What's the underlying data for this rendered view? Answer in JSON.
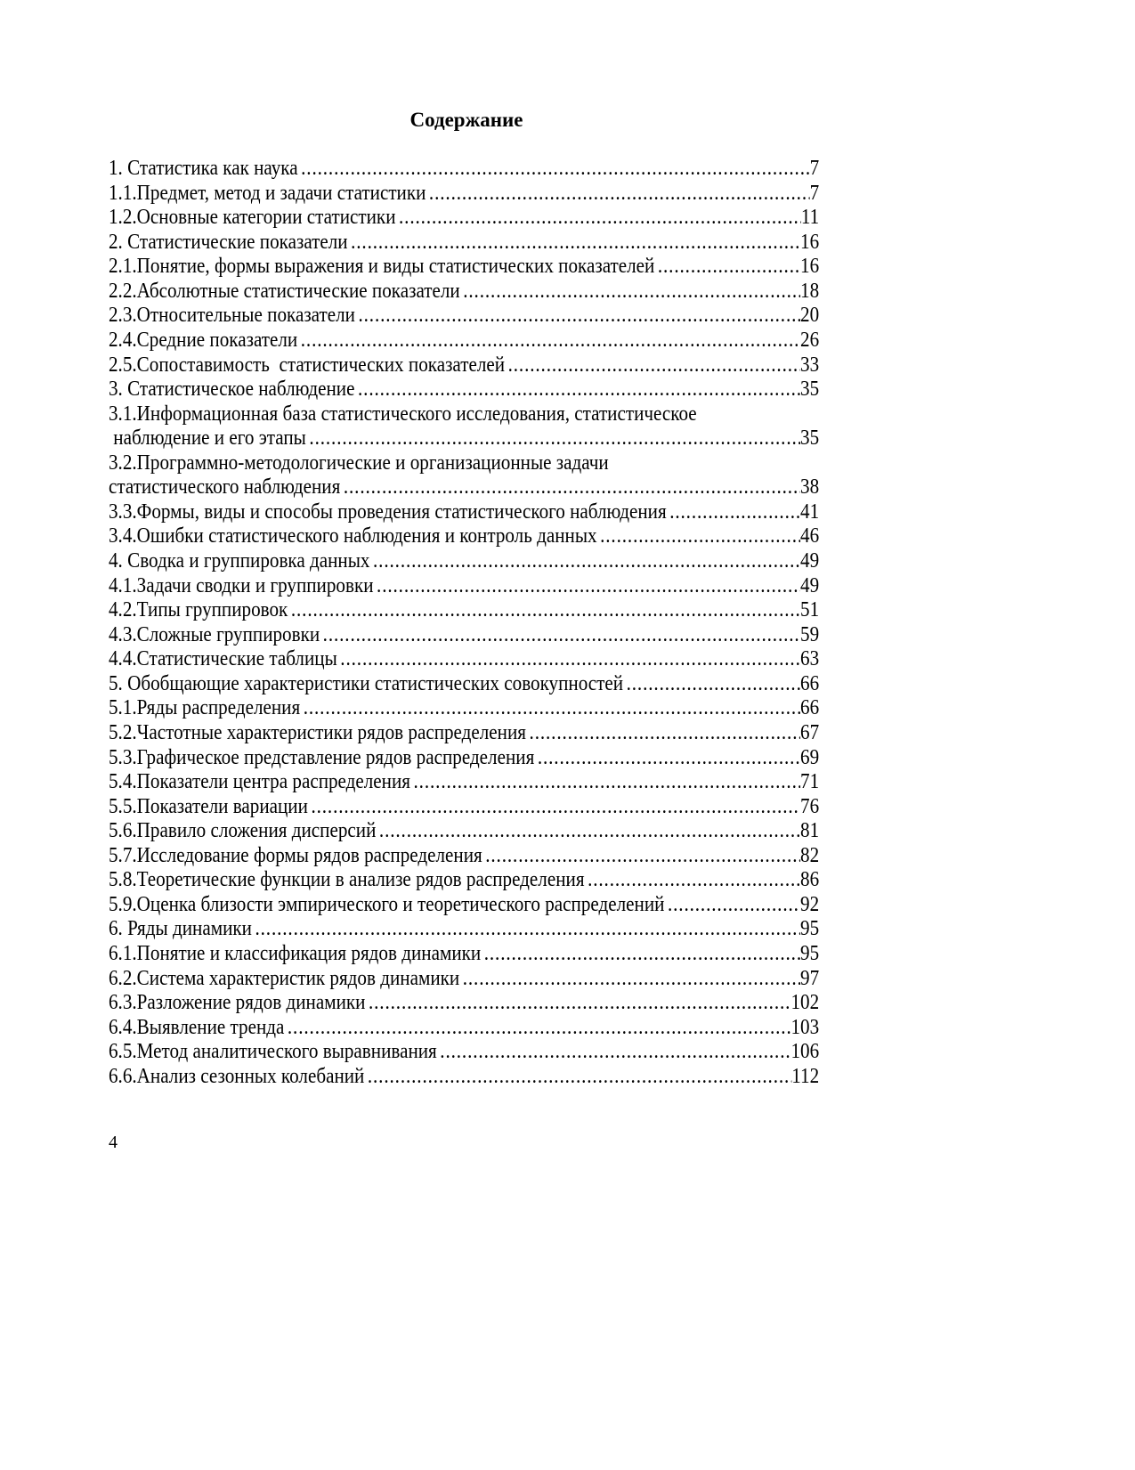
{
  "title": "Содержание",
  "entries": [
    {
      "lines": [
        "1. Статистика как наука"
      ],
      "page": "7"
    },
    {
      "lines": [
        "1.1.Предмет, метод и задачи статистики"
      ],
      "page": "7"
    },
    {
      "lines": [
        "1.2.Основные категории статистики"
      ],
      "page": "11"
    },
    {
      "lines": [
        "2. Статистические показатели"
      ],
      "page": "16"
    },
    {
      "lines": [
        "2.1.Понятие, формы выражения и виды статистических показателей"
      ],
      "page": "16"
    },
    {
      "lines": [
        "2.2.Абсолютные статистические показатели"
      ],
      "page": "18"
    },
    {
      "lines": [
        "2.3.Относительные показатели"
      ],
      "page": "20"
    },
    {
      "lines": [
        "2.4.Средние показатели"
      ],
      "page": "26"
    },
    {
      "lines": [
        "2.5.Сопоставимость  статистических показателей"
      ],
      "page": "33"
    },
    {
      "lines": [
        "3. Статистическое наблюдение"
      ],
      "page": "35"
    },
    {
      "lines": [
        "3.1.Информационная база статистического исследования, статистическое",
        " наблюдение и его этапы"
      ],
      "page": "35"
    },
    {
      "lines": [
        "3.2.Программно-методологические и организационные задачи",
        "статистического наблюдения"
      ],
      "page": "38"
    },
    {
      "lines": [
        "3.3.Формы, виды и способы проведения статистического наблюдения"
      ],
      "page": "41"
    },
    {
      "lines": [
        "3.4.Ошибки статистического наблюдения и контроль данных"
      ],
      "page": "46"
    },
    {
      "lines": [
        "4. Сводка и группировка данных"
      ],
      "page": "49"
    },
    {
      "lines": [
        "4.1.Задачи сводки и группировки"
      ],
      "page": "49"
    },
    {
      "lines": [
        "4.2.Типы группировок"
      ],
      "page": "51"
    },
    {
      "lines": [
        "4.3.Сложные группировки"
      ],
      "page": "59"
    },
    {
      "lines": [
        "4.4.Статистические таблицы"
      ],
      "page": "63"
    },
    {
      "lines": [
        "5. Обобщающие характеристики статистических совокупностей"
      ],
      "page": "66"
    },
    {
      "lines": [
        "5.1.Ряды распределения"
      ],
      "page": "66"
    },
    {
      "lines": [
        "5.2.Частотные характеристики рядов распределения"
      ],
      "page": "67"
    },
    {
      "lines": [
        "5.3.Графическое представление рядов распределения"
      ],
      "page": "69"
    },
    {
      "lines": [
        "5.4.Показатели центра распределения"
      ],
      "page": "71"
    },
    {
      "lines": [
        "5.5.Показатели вариации"
      ],
      "page": "76"
    },
    {
      "lines": [
        "5.6.Правило сложения дисперсий"
      ],
      "page": "81"
    },
    {
      "lines": [
        "5.7.Исследование формы рядов распределения"
      ],
      "page": "82"
    },
    {
      "lines": [
        "5.8.Теоретические функции в анализе рядов распределения"
      ],
      "page": "86"
    },
    {
      "lines": [
        "5.9.Оценка близости эмпирического и теоретического распределений"
      ],
      "page": "92"
    },
    {
      "lines": [
        "6. Ряды динамики"
      ],
      "page": "95"
    },
    {
      "lines": [
        "6.1.Понятие и классификация рядов динамики"
      ],
      "page": "95"
    },
    {
      "lines": [
        "6.2.Система характеристик рядов динамики"
      ],
      "page": "97"
    },
    {
      "lines": [
        "6.3.Разложение рядов динамики"
      ],
      "page": "102"
    },
    {
      "lines": [
        "6.4.Выявление тренда"
      ],
      "page": "103"
    },
    {
      "lines": [
        "6.5.Метод аналитического выравнивания"
      ],
      "page": "106"
    },
    {
      "lines": [
        "6.6.Анализ сезонных колебаний"
      ],
      "page": "112"
    }
  ],
  "page_number": "4"
}
